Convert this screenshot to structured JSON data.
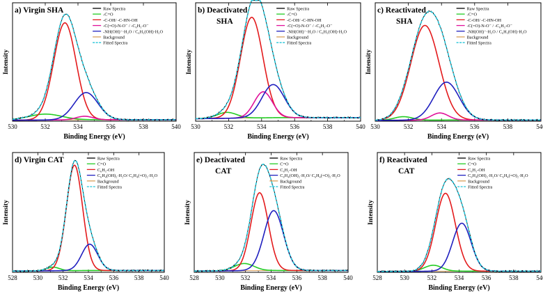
{
  "figure": {
    "panels_note": "six XPS O1s spectra panels",
    "colors": {
      "raw": "#000000",
      "c_o": "#22cc22",
      "oh": "#e31a1c",
      "third": "#e0119a",
      "water": "#1f1fbf",
      "background": "#d9a05b",
      "fitted": "#22c4d8"
    }
  },
  "chart_data": [
    {
      "id": "a",
      "type": "line",
      "title": "a) Virgin SHA",
      "xlabel": "Binding Energy (eV)",
      "ylabel": "Intensity",
      "xlim": [
        530,
        540
      ],
      "xticks": [
        "530",
        "532",
        "534",
        "536",
        "538",
        "540"
      ],
      "legend": [
        "Raw Spectra",
        "-C=O",
        "-C-OH/ -C-HN-OH",
        "-C(=O)-N-O⁻ / -C₆H₅-O⁻",
        "-NH(OH)⁻·H₂O / C₆H₅(OH)·H₂O",
        "Background",
        "Fitted Spectra"
      ],
      "series": [
        {
          "name": "-C=O",
          "role": "c_o",
          "center": 532.0,
          "height": 0.05,
          "fwhm": 2.4
        },
        {
          "name": "-C-OH/ -C-HN-OH",
          "role": "oh",
          "center": 533.2,
          "height": 0.82,
          "fwhm": 1.6
        },
        {
          "name": "-C(=O)-N-O⁻ / -C₆H₅-O⁻",
          "role": "third",
          "center": 534.4,
          "height": 0.03,
          "fwhm": 1.2
        },
        {
          "name": "-NH(OH)⁻·H₂O / C₆H₅(OH)·H₂O",
          "role": "water",
          "center": 534.5,
          "height": 0.23,
          "fwhm": 1.7
        }
      ],
      "background_level": 0.012
    },
    {
      "id": "b",
      "type": "line",
      "title": "b) Deactivated SHA",
      "title_lines": [
        "b) Deactivated",
        "SHA"
      ],
      "xlabel": "Binding Energy (eV)",
      "ylabel": "Intensity",
      "xlim": [
        530,
        540
      ],
      "xticks": [
        "530",
        "532",
        "534",
        "536",
        "538",
        "540"
      ],
      "legend": [
        "Raw Spectra",
        "-C=O",
        "-C-OH/ -C-HN-OH",
        "-C(=O)-N-O⁻ / -C₆H₅-O⁻",
        "-NH(OH)⁻·H₂O / C₆H₅(OH)·H₂O",
        "Background",
        "Fitted Spectra"
      ],
      "series": [
        {
          "name": "-C=O",
          "role": "c_o",
          "center": 531.9,
          "height": 0.05,
          "fwhm": 1.4
        },
        {
          "name": "-C-OH/ -C-HN-OH",
          "role": "oh",
          "center": 533.4,
          "height": 0.85,
          "fwhm": 1.6
        },
        {
          "name": "-C(=O)-N-O⁻ / -C₆H₅-O⁻",
          "role": "third",
          "center": 534.1,
          "height": 0.22,
          "fwhm": 1.3
        },
        {
          "name": "-NH(OH)⁻·H₂O / C₆H₅(OH)·H₂O",
          "role": "water",
          "center": 534.7,
          "height": 0.28,
          "fwhm": 1.6
        }
      ],
      "background_level": 0.03
    },
    {
      "id": "c",
      "type": "line",
      "title": "c) Reactivated SHA",
      "title_lines": [
        "c) Reactivated",
        "SHA"
      ],
      "xlabel": "Binding Energy (eV)",
      "ylabel": "Intensity",
      "xlim": [
        530,
        540
      ],
      "xticks": [
        "530",
        "532",
        "534",
        "536",
        "538",
        "540"
      ],
      "legend": [
        "Raw Spectra",
        "-C=O",
        "-C-OH/ -C-HN-OH",
        "-C(=O)-N-O⁻ / -C₆H₅-O⁻",
        "-NH(OH)⁻·H₂O / C₆H₅(OH)·H₂O",
        "Background",
        "Fitted Spectra"
      ],
      "series": [
        {
          "name": "-C=O",
          "role": "c_o",
          "center": 531.7,
          "height": 0.03,
          "fwhm": 1.3
        },
        {
          "name": "-C-OH/ -C-HN-OH",
          "role": "oh",
          "center": 533.0,
          "height": 0.8,
          "fwhm": 2.0
        },
        {
          "name": "-C(=O)-N-O⁻ / -C₆H₅-O⁻",
          "role": "third",
          "center": 533.9,
          "height": 0.06,
          "fwhm": 1.2
        },
        {
          "name": "-NH(OH)⁻·H₂O / C₆H₅(OH)·H₂O",
          "role": "water",
          "center": 534.3,
          "height": 0.32,
          "fwhm": 1.8
        }
      ],
      "background_level": 0.01
    },
    {
      "id": "d",
      "type": "line",
      "title": "d) Virgin CAT",
      "xlabel": "Binding Energy (eV)",
      "ylabel": "Intensity",
      "xlim": [
        528,
        540
      ],
      "xticks": [
        "528",
        "530",
        "532",
        "534",
        "536",
        "538",
        "540"
      ],
      "legend": [
        "Raw Spectra",
        "C=O",
        "C₆H₅-OH",
        "C₆H₄(OH)₂·H₂O/ C₆H₄(=O)₂·H₂O",
        "Background",
        "Fitted Spectra"
      ],
      "series": [
        {
          "name": "C=O",
          "role": "c_o",
          "center": 531.2,
          "height": 0.03,
          "fwhm": 1.2
        },
        {
          "name": "C₆H₅-OH",
          "role": "oh",
          "center": 532.9,
          "height": 0.88,
          "fwhm": 1.5
        },
        {
          "name": "C₆H₄(OH)₂·H₂O/ C₆H₄(=O)₂·H₂O",
          "role": "water",
          "center": 534.1,
          "height": 0.22,
          "fwhm": 1.5
        }
      ],
      "background_level": 0.015
    },
    {
      "id": "e",
      "type": "line",
      "title": "e) Deactivated CAT",
      "title_lines": [
        "e) Deactivated",
        "CAT"
      ],
      "xlabel": "Binding Energy (eV)",
      "ylabel": "Intensity",
      "xlim": [
        528,
        540
      ],
      "xticks": [
        "528",
        "530",
        "532",
        "534",
        "536",
        "538",
        "540"
      ],
      "legend": [
        "Raw Spectra",
        "C=O",
        "C₆H₅-OH",
        "C₆H₄(OH)₂·H₂O/ C₆H₄(=O)₂·H₂O",
        "Background",
        "Fitted Spectra"
      ],
      "series": [
        {
          "name": "C=O",
          "role": "c_o",
          "center": 531.9,
          "height": 0.06,
          "fwhm": 1.8
        },
        {
          "name": "C₆H₅-OH",
          "role": "oh",
          "center": 533.1,
          "height": 0.65,
          "fwhm": 1.6
        },
        {
          "name": "C₆H₄(OH)₂·H₂O/ C₆H₄(=O)₂·H₂O",
          "role": "water",
          "center": 534.2,
          "height": 0.5,
          "fwhm": 1.8
        }
      ],
      "background_level": 0.015
    },
    {
      "id": "f",
      "type": "line",
      "title": "f) Reactivated CAT",
      "title_lines": [
        "f) Reactivated",
        "CAT"
      ],
      "xlabel": "Binding Energy (eV)",
      "ylabel": "Intensity",
      "xlim": [
        528,
        540
      ],
      "xticks": [
        "528",
        "530",
        "532",
        "534",
        "536",
        "538",
        "540"
      ],
      "legend": [
        "Raw Spectra",
        "C=O",
        "C₆H₅-OH",
        "C₆H₄(OH)₂·H₂O/ C₆H₄(=O)₂·H₂O",
        "Background",
        "Fitted Spectra"
      ],
      "series": [
        {
          "name": "C=O",
          "role": "c_o",
          "center": 532.1,
          "height": 0.05,
          "fwhm": 1.5
        },
        {
          "name": "C₆H₅-OH",
          "role": "oh",
          "center": 533.0,
          "height": 0.65,
          "fwhm": 1.7
        },
        {
          "name": "C₆H₄(OH)₂·H₂O/ C₆H₄(=O)₂·H₂O",
          "role": "water",
          "center": 534.2,
          "height": 0.4,
          "fwhm": 1.6
        }
      ],
      "background_level": 0.01
    }
  ]
}
